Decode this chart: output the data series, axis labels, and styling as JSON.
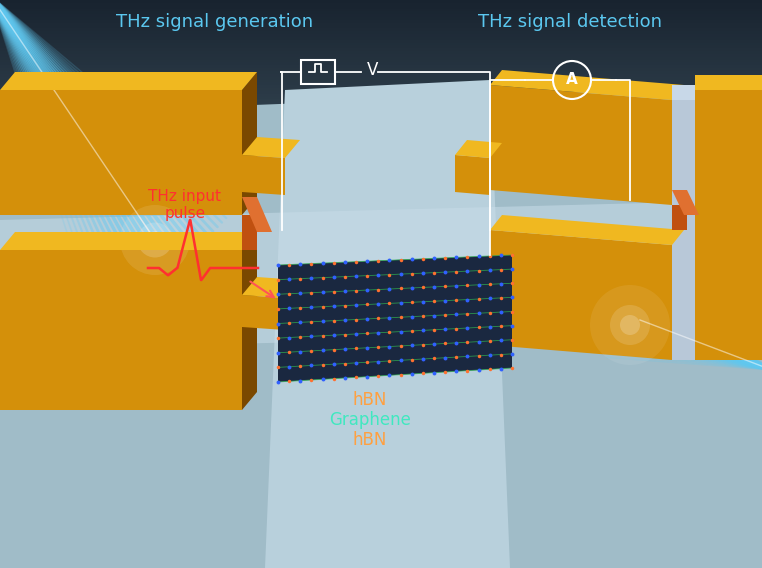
{
  "bg_top": "#18232f",
  "bg_bottom": "#8ab0c0",
  "gold_face": "#d4900a",
  "gold_top": "#f0b820",
  "gold_side": "#7a4800",
  "gold_edge": "#5a3200",
  "substrate": "#a0bcc8",
  "substrate_light": "#b8d0dc",
  "substrate_center": "#c8dce8",
  "text_thz_gen": "THz signal generation",
  "text_thz_det": "THz signal detection",
  "text_input": "THz input\npulse",
  "text_hbn": "hBN",
  "text_graphene": "Graphene",
  "color_thz": "#5bc8f0",
  "color_input": "#ff3030",
  "color_hbn": "#ffa040",
  "color_graphene": "#40e8c0",
  "white": "#ffffff",
  "graphene_bg": "#1a2840",
  "dot_blue": "#3060ff",
  "dot_orange": "#ff7030",
  "bond_green": "#30b050"
}
